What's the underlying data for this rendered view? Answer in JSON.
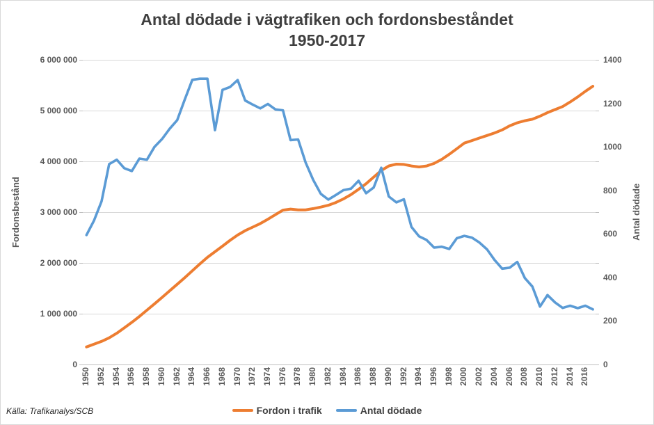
{
  "title": {
    "line1": "Antal dödade i vägtrafiken och fordonsbeståndet",
    "line2": "1950-2017"
  },
  "source": "Källa: Trafikanalys/SCB",
  "legend": [
    {
      "label": "Fordon i trafik",
      "color": "#ED7D31"
    },
    {
      "label": "Antal dödade",
      "color": "#5B9BD5"
    }
  ],
  "axes": {
    "left": {
      "title": "Fordonsbestånd",
      "ticks": [
        "6 000 000",
        "5 000 000",
        "4 000 000",
        "3 000 000",
        "2 000 000",
        "1 000 000",
        "0"
      ]
    },
    "right": {
      "title": "Antal dödade",
      "ticks": [
        "1400",
        "1200",
        "1000",
        "800",
        "600",
        "400",
        "200",
        "0"
      ]
    },
    "x": {
      "ticks": [
        "1950",
        "1952",
        "1954",
        "1956",
        "1958",
        "1960",
        "1962",
        "1964",
        "1966",
        "1968",
        "1970",
        "1972",
        "1974",
        "1976",
        "1978",
        "1980",
        "1982",
        "1984",
        "1986",
        "1988",
        "1990",
        "1992",
        "1994",
        "1996",
        "1998",
        "2000",
        "2002",
        "2004",
        "2006",
        "2008",
        "2010",
        "2012",
        "2014",
        "2016"
      ]
    }
  },
  "chart_data": {
    "type": "line",
    "title": "Antal dödade i vägtrafiken och fordonsbeståndet 1950-2017",
    "x": [
      1950,
      1951,
      1952,
      1953,
      1954,
      1955,
      1956,
      1957,
      1958,
      1959,
      1960,
      1961,
      1962,
      1963,
      1964,
      1965,
      1966,
      1967,
      1968,
      1969,
      1970,
      1971,
      1972,
      1973,
      1974,
      1975,
      1976,
      1977,
      1978,
      1979,
      1980,
      1981,
      1982,
      1983,
      1984,
      1985,
      1986,
      1987,
      1988,
      1989,
      1990,
      1991,
      1992,
      1993,
      1994,
      1995,
      1996,
      1997,
      1998,
      1999,
      2000,
      2001,
      2002,
      2003,
      2004,
      2005,
      2006,
      2007,
      2008,
      2009,
      2010,
      2011,
      2012,
      2013,
      2014,
      2015,
      2016,
      2017
    ],
    "left_ylabel": "Fordonsbestånd",
    "right_ylabel": "Antal dödade",
    "left_ylim": [
      0,
      6000000
    ],
    "right_ylim": [
      0,
      1400
    ],
    "grid": true,
    "legend_position": "bottom",
    "series": [
      {
        "name": "Fordon i trafik",
        "axis": "left",
        "color": "#ED7D31",
        "width": 4,
        "values": [
          345000,
          400000,
          455000,
          525000,
          615000,
          720000,
          830000,
          945000,
          1070000,
          1195000,
          1320000,
          1450000,
          1580000,
          1710000,
          1845000,
          1980000,
          2110000,
          2220000,
          2330000,
          2445000,
          2550000,
          2635000,
          2705000,
          2775000,
          2860000,
          2950000,
          3040000,
          3060000,
          3045000,
          3045000,
          3070000,
          3100000,
          3135000,
          3190000,
          3260000,
          3345000,
          3450000,
          3560000,
          3690000,
          3820000,
          3910000,
          3945000,
          3940000,
          3910000,
          3890000,
          3910000,
          3960000,
          4040000,
          4140000,
          4250000,
          4360000,
          4410000,
          4460000,
          4510000,
          4560000,
          4620000,
          4700000,
          4760000,
          4800000,
          4830000,
          4890000,
          4960000,
          5020000,
          5080000,
          5170000,
          5270000,
          5380000,
          5480000
        ]
      },
      {
        "name": "Antal dödade",
        "axis": "right",
        "color": "#5B9BD5",
        "width": 3.6,
        "values": [
          595,
          662,
          750,
          921,
          941,
          902,
          889,
          946,
          941,
          1000,
          1036,
          1083,
          1123,
          1217,
          1308,
          1313,
          1313,
          1077,
          1262,
          1275,
          1307,
          1213,
          1194,
          1177,
          1197,
          1172,
          1168,
          1031,
          1034,
          928,
          848,
          784,
          758,
          779,
          801,
          808,
          844,
          787,
          813,
          904,
          772,
          745,
          759,
          632,
          589,
          572,
          537,
          541,
          531,
          580,
          591,
          583,
          560,
          529,
          480,
          440,
          445,
          471,
          397,
          358,
          266,
          319,
          285,
          260,
          270,
          259,
          270,
          253
        ]
      }
    ]
  }
}
